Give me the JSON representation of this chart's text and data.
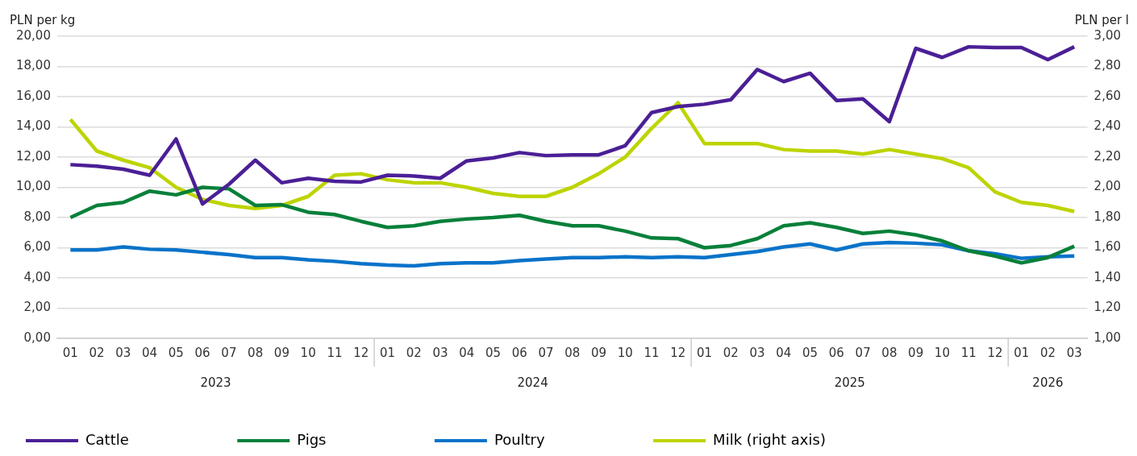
{
  "chart_data": {
    "type": "line",
    "ylabel": "PLN per kg",
    "y2label": "PLN per l",
    "categories": [
      "01",
      "02",
      "03",
      "04",
      "05",
      "06",
      "07",
      "08",
      "09",
      "10",
      "11",
      "12",
      "01",
      "02",
      "03",
      "04",
      "05",
      "06",
      "07",
      "08",
      "09",
      "10",
      "11",
      "12",
      "01",
      "02",
      "03",
      "04",
      "05",
      "06",
      "07",
      "08",
      "09",
      "10",
      "11",
      "12",
      "01",
      "02",
      "03"
    ],
    "annotations": [
      "2023",
      "2024",
      "2025",
      "2026"
    ],
    "series": [
      {
        "name": "Cattle",
        "color": "#4b1f96",
        "values": [
          11.5,
          11.4,
          11.2,
          10.8,
          13.2,
          8.9,
          10.2,
          11.8,
          10.3,
          10.6,
          10.4,
          10.35,
          10.8,
          10.75,
          10.6,
          11.75,
          11.95,
          12.3,
          12.1,
          12.15,
          12.15,
          12.75,
          14.95,
          15.35,
          15.5,
          15.8,
          17.8,
          17.0,
          17.55,
          15.75,
          15.85,
          14.35,
          19.2,
          18.6,
          19.3,
          19.25,
          19.25,
          18.45,
          19.3
        ]
      },
      {
        "name": "Pigs",
        "color": "#08803a",
        "values": [
          8.0,
          8.8,
          9.0,
          9.75,
          9.5,
          10.0,
          9.9,
          8.8,
          8.85,
          8.35,
          8.2,
          7.75,
          7.35,
          7.45,
          7.75,
          7.9,
          8.0,
          8.15,
          7.75,
          7.45,
          7.45,
          7.1,
          6.65,
          6.6,
          6.0,
          6.15,
          6.6,
          7.45,
          7.65,
          7.35,
          6.95,
          7.1,
          6.85,
          6.45,
          5.8,
          5.45,
          5.0,
          5.35,
          6.1
        ]
      },
      {
        "name": "Poultry",
        "color": "#0a73c9",
        "values": [
          5.85,
          5.85,
          6.05,
          5.9,
          5.85,
          5.7,
          5.55,
          5.35,
          5.35,
          5.2,
          5.1,
          4.95,
          4.85,
          4.8,
          4.95,
          5.0,
          5.0,
          5.15,
          5.25,
          5.35,
          5.35,
          5.4,
          5.35,
          5.4,
          5.35,
          5.55,
          5.75,
          6.05,
          6.25,
          5.85,
          6.25,
          6.35,
          6.3,
          6.2,
          5.8,
          5.6,
          5.3,
          5.4,
          5.45
        ]
      },
      {
        "name": "Milk (right axis)",
        "color": "#bdd400",
        "axis": "y2",
        "values": [
          2.45,
          2.24,
          2.18,
          2.13,
          2.0,
          1.92,
          1.88,
          1.86,
          1.88,
          1.94,
          2.08,
          2.09,
          2.05,
          2.03,
          2.03,
          2.0,
          1.96,
          1.94,
          1.94,
          2.0,
          2.09,
          2.2,
          2.39,
          2.56,
          2.29,
          2.29,
          2.29,
          2.25,
          2.24,
          2.24,
          2.22,
          2.25,
          2.22,
          2.19,
          2.13,
          1.97,
          1.9,
          1.88,
          1.84
        ]
      }
    ],
    "ylim": [
      0,
      20
    ],
    "yticks": [
      {
        "value": 0,
        "label": "0,00"
      },
      {
        "value": 2,
        "label": "2,00"
      },
      {
        "value": 4,
        "label": "4,00"
      },
      {
        "value": 6,
        "label": "6,00"
      },
      {
        "value": 8,
        "label": "8,00"
      },
      {
        "value": 10,
        "label": "10,00"
      },
      {
        "value": 12,
        "label": "12,00"
      },
      {
        "value": 14,
        "label": "14,00"
      },
      {
        "value": 16,
        "label": "16,00"
      },
      {
        "value": 18,
        "label": "18,00"
      },
      {
        "value": 20,
        "label": "20,00"
      }
    ],
    "y2lim": [
      1,
      3
    ],
    "y2ticks": [
      {
        "value": 1,
        "label": "1,00"
      },
      {
        "value": 1.2,
        "label": "1,20"
      },
      {
        "value": 1.4,
        "label": "1,40"
      },
      {
        "value": 1.6,
        "label": "1,60"
      },
      {
        "value": 1.8,
        "label": "1,80"
      },
      {
        "value": 2,
        "label": "2,00"
      },
      {
        "value": 2.2,
        "label": "2,20"
      },
      {
        "value": 2.4,
        "label": "2,40"
      },
      {
        "value": 2.6,
        "label": "2,60"
      },
      {
        "value": 2.8,
        "label": "2,80"
      },
      {
        "value": 3,
        "label": "3,00"
      }
    ],
    "grid": "y",
    "legend": "bottom",
    "marker": "none",
    "line_style": "solid"
  }
}
